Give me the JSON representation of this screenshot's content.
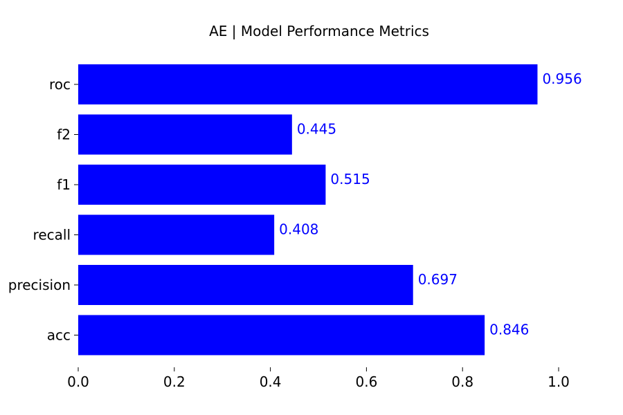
{
  "chart_data": {
    "type": "bar",
    "orientation": "horizontal",
    "title": "AE |  Model Performance Metrics",
    "categories": [
      "acc",
      "precision",
      "recall",
      "f1",
      "f2",
      "roc"
    ],
    "values": [
      0.846,
      0.697,
      0.408,
      0.515,
      0.445,
      0.956
    ],
    "value_labels": [
      "0.846",
      "0.697",
      "0.408",
      "0.515",
      "0.445",
      "0.956"
    ],
    "xlim": [
      0.0,
      1.0
    ],
    "xticks": [
      0.0,
      0.2,
      0.4,
      0.6,
      0.8,
      1.0
    ],
    "xtick_labels": [
      "0.0",
      "0.2",
      "0.4",
      "0.6",
      "0.8",
      "1.0"
    ],
    "xlabel": "",
    "ylabel": "",
    "grid": false,
    "bar_color": "#0000ff",
    "label_color": "#0000ff"
  }
}
